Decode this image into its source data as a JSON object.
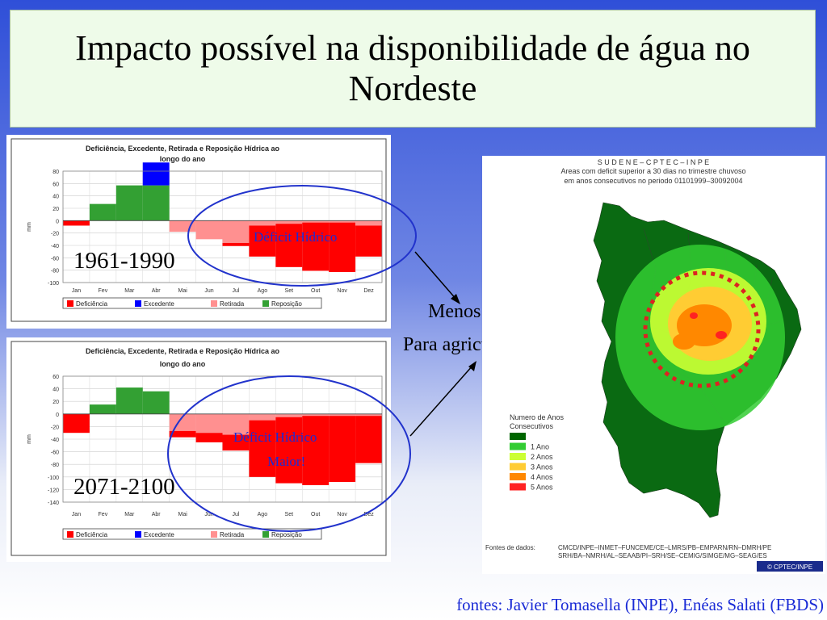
{
  "slide": {
    "title": "Impacto possível na disponibilidade de água no Nordeste",
    "period_top": "1961-1990",
    "period_bottom": "2071-2100",
    "deficit_top": "Déficit Hídrico",
    "deficit_bottom_line1": "Déficit Hídrico",
    "deficit_bottom_line2": "Maior!",
    "callout_line1": "Menos água",
    "callout_line2": "Para agricultura!",
    "sources": "fontes: Javier Tomasella (INPE), Enéas Salati (FBDS)",
    "colors": {
      "accent_blue": "#1a2bd6",
      "ellipse": "#2233cc",
      "title_bg": "#eefbe9"
    }
  },
  "chart_data": [
    {
      "type": "bar",
      "title": "Deficiência, Excedente, Retirada e Reposição Hídrica ao longo do ano",
      "categories": [
        "Jan",
        "Fev",
        "Mar",
        "Abr",
        "Mai",
        "Jun",
        "Jul",
        "Ago",
        "Set",
        "Out",
        "Nov",
        "Dez"
      ],
      "ylim": [
        -100,
        80
      ],
      "yticks": [
        80,
        60,
        40,
        20,
        0,
        -20,
        -40,
        -60,
        -80,
        -100
      ],
      "ylabel": "mm",
      "series": [
        {
          "name": "Deficiência",
          "color": "#ff0000",
          "values": [
            -8,
            0,
            0,
            0,
            0,
            0,
            -5,
            -50,
            -70,
            -78,
            -80,
            -50
          ]
        },
        {
          "name": "Excedente",
          "color": "#0000ff",
          "values": [
            0,
            0,
            0,
            37,
            0,
            0,
            0,
            0,
            0,
            0,
            0,
            0
          ]
        },
        {
          "name": "Retirada",
          "color": "#ff9090",
          "values": [
            0,
            0,
            0,
            0,
            -18,
            -30,
            -36,
            -8,
            -5,
            -3,
            -3,
            -8
          ]
        },
        {
          "name": "Reposição",
          "color": "#33a033",
          "values": [
            0,
            27,
            57,
            57,
            0,
            0,
            0,
            0,
            0,
            0,
            0,
            0
          ]
        }
      ]
    },
    {
      "type": "bar",
      "title": "Deficiência, Excedente, Retirada e Reposição Hídrica ao longo do ano",
      "categories": [
        "Jan",
        "Fev",
        "Mar",
        "Abr",
        "Mai",
        "Jun",
        "Jul",
        "Ago",
        "Set",
        "Out",
        "Nov",
        "Dez"
      ],
      "ylim": [
        -140,
        60
      ],
      "yticks": [
        60,
        40,
        20,
        0,
        -20,
        -40,
        -60,
        -80,
        -100,
        -120,
        -140
      ],
      "ylabel": "mm",
      "series": [
        {
          "name": "Deficiência",
          "color": "#ff0000",
          "values": [
            -30,
            0,
            0,
            0,
            -10,
            -15,
            -25,
            -90,
            -105,
            -110,
            -105,
            -75
          ]
        },
        {
          "name": "Excedente",
          "color": "#0000ff",
          "values": [
            0,
            0,
            0,
            0,
            0,
            0,
            0,
            0,
            0,
            0,
            0,
            0
          ]
        },
        {
          "name": "Retirada",
          "color": "#ff9090",
          "values": [
            0,
            0,
            0,
            0,
            -27,
            -30,
            -33,
            -10,
            -5,
            -3,
            -3,
            -3
          ]
        },
        {
          "name": "Reposição",
          "color": "#33a033",
          "values": [
            0,
            15,
            42,
            36,
            0,
            0,
            0,
            0,
            0,
            0,
            0,
            0
          ]
        }
      ]
    }
  ],
  "map": {
    "header_line1": "S U D E N E  –  C P T E C – I N P E",
    "header_line2": "Areas com deficit superior a 30 dias no trimestre chuvoso",
    "header_line3": "em anos consecutivos no periodo 01101999–30092004",
    "legend_title_line1": "Numero de Anos",
    "legend_title_line2": "Consecutivos",
    "legend_items": [
      {
        "label": "",
        "color": "#006600"
      },
      {
        "label": "1 Ano",
        "color": "#33cc33"
      },
      {
        "label": "2 Anos",
        "color": "#ccff33"
      },
      {
        "label": "3 Anos",
        "color": "#ffcc33"
      },
      {
        "label": "4 Anos",
        "color": "#ff8800"
      },
      {
        "label": "5 Anos",
        "color": "#ff2222"
      }
    ],
    "source_label": "Fontes de dados:",
    "source_line1": "CMCD/INPE–INMET–FUNCEME/CE–LMRS/PB–EMPARN/RN–DMRH/PE",
    "source_line2": "SRH/BA–NMRH/AL–SEAAB/PI–SRH/SE–CEMIG/SIMGE/MG–SEAG/ES",
    "credit": "© CPTEC/INPE"
  }
}
